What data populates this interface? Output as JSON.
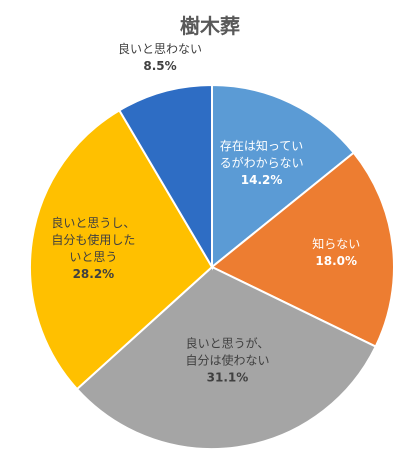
{
  "chart_data": {
    "type": "pie",
    "title": "樹木葬",
    "start_angle_deg": 0,
    "direction": "clockwise",
    "slices": [
      {
        "label": "存在は知っているがわからない",
        "label_lines": [
          "存在は知ってい",
          "るがわからない"
        ],
        "value": 14.2,
        "value_label": "14.2%",
        "color": "#5B9BD5",
        "text_color": "#ffffff"
      },
      {
        "label": "知らない",
        "label_lines": [
          "知らない"
        ],
        "value": 18.0,
        "value_label": "18.0%",
        "color": "#ED7D31",
        "text_color": "#ffffff"
      },
      {
        "label": "良いと思うが、自分は使わない",
        "label_lines": [
          "良いと思うが、",
          "自分は使わない"
        ],
        "value": 31.1,
        "value_label": "31.1%",
        "color": "#A5A5A5",
        "text_color": "#404040"
      },
      {
        "label": "良いと思うし、自分も使用したいと思う",
        "label_lines": [
          "良いと思うし、",
          "自分も使用した",
          "いと思う"
        ],
        "value": 28.2,
        "value_label": "28.2%",
        "color": "#FFC000",
        "text_color": "#404040"
      },
      {
        "label": "良いと思わない",
        "label_lines": [
          "良いと思わない"
        ],
        "value": 8.5,
        "value_label": "8.5%",
        "color": "#2E6DC4",
        "text_color": "#404040",
        "label_outside": true
      }
    ]
  }
}
